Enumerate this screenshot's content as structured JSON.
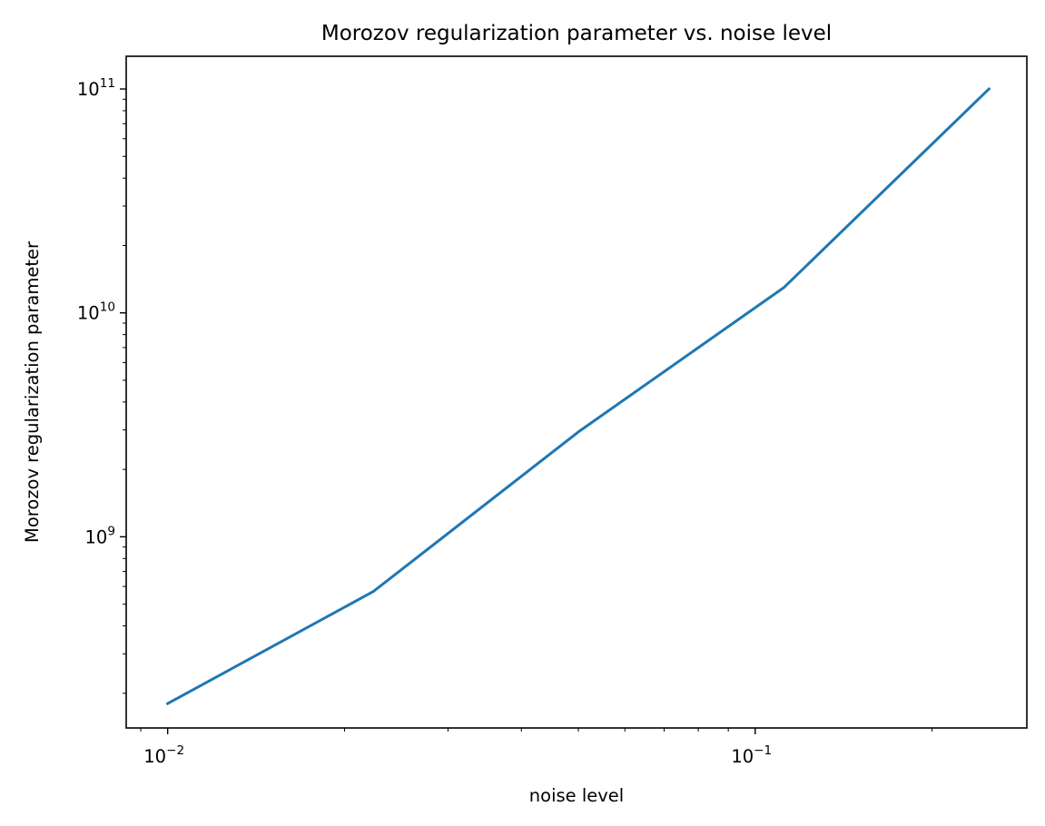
{
  "chart_data": {
    "type": "line",
    "title": "Morozov regularization parameter vs. noise level",
    "xlabel": "noise level",
    "ylabel": "Morozov regularization parameter",
    "xscale": "log",
    "yscale": "log",
    "xlim": [
      0.0085,
      0.29
    ],
    "ylim": [
      140000000,
      140000000000
    ],
    "x_ticks": [
      {
        "base": "10",
        "exp": "−2",
        "value": 0.01
      },
      {
        "base": "10",
        "exp": "−1",
        "value": 0.1
      }
    ],
    "y_ticks": [
      {
        "base": "10",
        "exp": "9",
        "value": 1000000000
      },
      {
        "base": "10",
        "exp": "10",
        "value": 10000000000
      },
      {
        "base": "10",
        "exp": "11",
        "value": 100000000000
      }
    ],
    "grid": false,
    "series": [
      {
        "color": "#1f77b4",
        "x": [
          0.01,
          0.0224,
          0.0501,
          0.112,
          0.25
        ],
        "y": [
          180000000,
          570000000,
          2950000000,
          13000000000,
          100000000000
        ]
      }
    ]
  }
}
